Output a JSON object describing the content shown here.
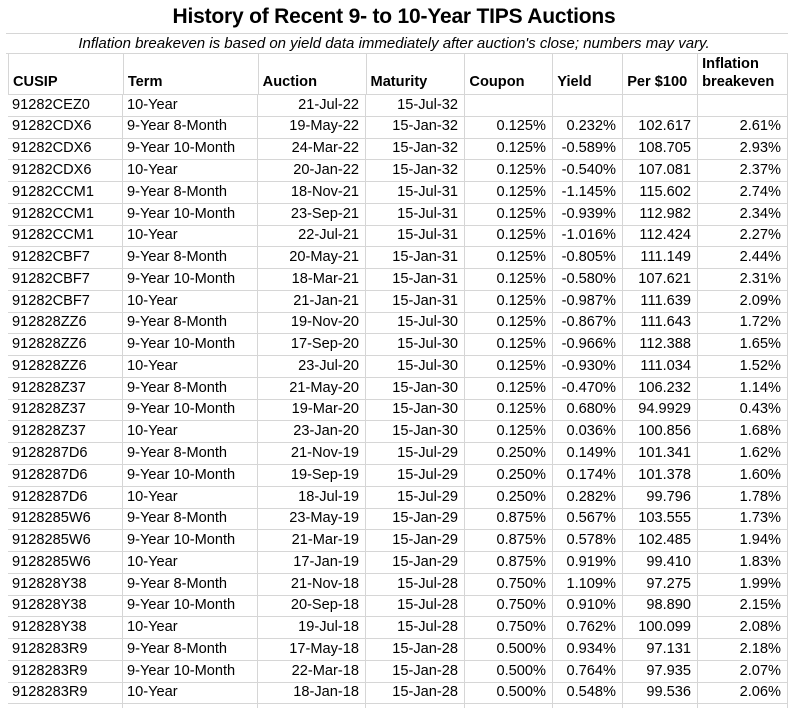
{
  "title": "History of Recent 9- to 10-Year TIPS Auctions",
  "subtitle": "Inflation breakeven is based on yield data immediately after auction's close; numbers may vary.",
  "colors": {
    "background": "#ffffff",
    "text": "#000000",
    "gridline": "#d6d6d6"
  },
  "table": {
    "columns": [
      {
        "label": "CUSIP",
        "data_align": "left"
      },
      {
        "label": "Term",
        "data_align": "left"
      },
      {
        "label": "Auction",
        "data_align": "right"
      },
      {
        "label": "Maturity",
        "data_align": "right"
      },
      {
        "label": "Coupon",
        "data_align": "right"
      },
      {
        "label": "Yield",
        "data_align": "right"
      },
      {
        "label": "Per $100",
        "data_align": "right"
      },
      {
        "label": "Inflation breakeven",
        "data_align": "right"
      }
    ],
    "rows": [
      [
        "91282CEZ0",
        "10-Year",
        "21-Jul-22",
        "15-Jul-32",
        "",
        "",
        "",
        ""
      ],
      [
        "91282CDX6",
        "9-Year 8-Month",
        "19-May-22",
        "15-Jan-32",
        "0.125%",
        "0.232%",
        "102.617",
        "2.61%"
      ],
      [
        "91282CDX6",
        "9-Year 10-Month",
        "24-Mar-22",
        "15-Jan-32",
        "0.125%",
        "-0.589%",
        "108.705",
        "2.93%"
      ],
      [
        "91282CDX6",
        "10-Year",
        "20-Jan-22",
        "15-Jan-32",
        "0.125%",
        "-0.540%",
        "107.081",
        "2.37%"
      ],
      [
        "91282CCM1",
        "9-Year 8-Month",
        "18-Nov-21",
        "15-Jul-31",
        "0.125%",
        "-1.145%",
        "115.602",
        "2.74%"
      ],
      [
        "91282CCM1",
        "9-Year 10-Month",
        "23-Sep-21",
        "15-Jul-31",
        "0.125%",
        "-0.939%",
        "112.982",
        "2.34%"
      ],
      [
        "91282CCM1",
        "10-Year",
        "22-Jul-21",
        "15-Jul-31",
        "0.125%",
        "-1.016%",
        "112.424",
        "2.27%"
      ],
      [
        "91282CBF7",
        "9-Year 8-Month",
        "20-May-21",
        "15-Jan-31",
        "0.125%",
        "-0.805%",
        "111.149",
        "2.44%"
      ],
      [
        "91282CBF7",
        "9-Year 10-Month",
        "18-Mar-21",
        "15-Jan-31",
        "0.125%",
        "-0.580%",
        "107.621",
        "2.31%"
      ],
      [
        "91282CBF7",
        "10-Year",
        "21-Jan-21",
        "15-Jan-31",
        "0.125%",
        "-0.987%",
        "111.639",
        "2.09%"
      ],
      [
        "912828ZZ6",
        "9-Year 8-Month",
        "19-Nov-20",
        "15-Jul-30",
        "0.125%",
        "-0.867%",
        "111.643",
        "1.72%"
      ],
      [
        "912828ZZ6",
        "9-Year 10-Month",
        "17-Sep-20",
        "15-Jul-30",
        "0.125%",
        "-0.966%",
        "112.388",
        "1.65%"
      ],
      [
        "912828ZZ6",
        "10-Year",
        "23-Jul-20",
        "15-Jul-30",
        "0.125%",
        "-0.930%",
        "111.034",
        "1.52%"
      ],
      [
        "912828Z37",
        "9-Year 8-Month",
        "21-May-20",
        "15-Jan-30",
        "0.125%",
        "-0.470%",
        "106.232",
        "1.14%"
      ],
      [
        "912828Z37",
        "9-Year 10-Month",
        "19-Mar-20",
        "15-Jan-30",
        "0.125%",
        "0.680%",
        "94.9929",
        "0.43%"
      ],
      [
        "912828Z37",
        "10-Year",
        "23-Jan-20",
        "15-Jan-30",
        "0.125%",
        "0.036%",
        "100.856",
        "1.68%"
      ],
      [
        "9128287D6",
        "9-Year 8-Month",
        "21-Nov-19",
        "15-Jul-29",
        "0.250%",
        "0.149%",
        "101.341",
        "1.62%"
      ],
      [
        "9128287D6",
        "9-Year 10-Month",
        "19-Sep-19",
        "15-Jul-29",
        "0.250%",
        "0.174%",
        "101.378",
        "1.60%"
      ],
      [
        "9128287D6",
        "10-Year",
        "18-Jul-19",
        "15-Jul-29",
        "0.250%",
        "0.282%",
        "99.796",
        "1.78%"
      ],
      [
        "9128285W6",
        "9-Year 8-Month",
        "23-May-19",
        "15-Jan-29",
        "0.875%",
        "0.567%",
        "103.555",
        "1.73%"
      ],
      [
        "9128285W6",
        "9-Year 10-Month",
        "21-Mar-19",
        "15-Jan-29",
        "0.875%",
        "0.578%",
        "102.485",
        "1.94%"
      ],
      [
        "9128285W6",
        "10-Year",
        "17-Jan-19",
        "15-Jan-29",
        "0.875%",
        "0.919%",
        "99.410",
        "1.83%"
      ],
      [
        "912828Y38",
        "9-Year 8-Month",
        "21-Nov-18",
        "15-Jul-28",
        "0.750%",
        "1.109%",
        "97.275",
        "1.99%"
      ],
      [
        "912828Y38",
        "9-Year 10-Month",
        "20-Sep-18",
        "15-Jul-28",
        "0.750%",
        "0.910%",
        "98.890",
        "2.15%"
      ],
      [
        "912828Y38",
        "10-Year",
        "19-Jul-18",
        "15-Jul-28",
        "0.750%",
        "0.762%",
        "100.099",
        "2.08%"
      ],
      [
        "9128283R9",
        "9-Year 8-Month",
        "17-May-18",
        "15-Jan-28",
        "0.500%",
        "0.934%",
        "97.131",
        "2.18%"
      ],
      [
        "9128283R9",
        "9-Year 10-Month",
        "22-Mar-18",
        "15-Jan-28",
        "0.500%",
        "0.764%",
        "97.935",
        "2.07%"
      ],
      [
        "9128283R9",
        "10-Year",
        "18-Jan-18",
        "15-Jan-28",
        "0.500%",
        "0.548%",
        "99.536",
        "2.06%"
      ]
    ]
  }
}
